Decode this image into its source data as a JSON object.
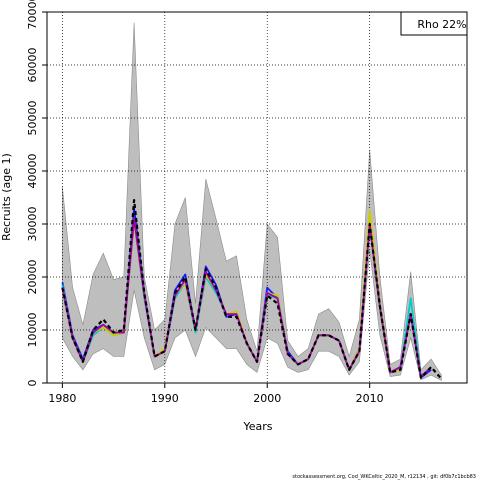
{
  "chart_data": {
    "type": "line",
    "title": "",
    "xlabel": "Years",
    "ylabel": "Recruits (age 1)",
    "xlim": [
      1978.5,
      2019.5
    ],
    "ylim": [
      0,
      70000
    ],
    "xticks": [
      1980,
      1990,
      2000,
      2010
    ],
    "yticks": [
      0,
      10000,
      20000,
      30000,
      40000,
      50000,
      60000,
      70000
    ],
    "grid": true,
    "legend": {
      "placement": "top-right",
      "label": "Rho 22%"
    },
    "footer": "stockassessment.org,  Cod_WKCeltic_2020_M, r12134 ,  git: df0b7c1bcb83",
    "confidence_band": {
      "x": [
        1980,
        1981,
        1982,
        1983,
        1984,
        1985,
        1986,
        1987,
        1988,
        1989,
        1990,
        1991,
        1992,
        1993,
        1994,
        1995,
        1996,
        1997,
        1998,
        1999,
        2000,
        2001,
        2002,
        2003,
        2004,
        2005,
        2006,
        2007,
        2008,
        2009,
        2010,
        2011,
        2012,
        2013,
        2014,
        2015,
        2016,
        2017
      ],
      "upper": [
        37000,
        18000,
        11000,
        20500,
        24500,
        19500,
        20000,
        68000,
        20000,
        10000,
        12000,
        30000,
        35000,
        15000,
        38500,
        31000,
        23000,
        24000,
        12000,
        6000,
        30000,
        27500,
        8000,
        5000,
        6500,
        13000,
        14000,
        11500,
        5000,
        12000,
        44000,
        20000,
        3500,
        4500,
        21000,
        2500,
        4500,
        1500
      ],
      "lower": [
        8500,
        5000,
        2500,
        5500,
        6500,
        5000,
        5000,
        17500,
        8500,
        2500,
        3500,
        8500,
        10000,
        5000,
        10500,
        8500,
        6500,
        6500,
        3500,
        2000,
        8500,
        7500,
        3000,
        2000,
        2500,
        6000,
        6000,
        5000,
        1500,
        4000,
        25000,
        9000,
        1200,
        1500,
        8500,
        600,
        1500,
        500
      ]
    },
    "series": [
      {
        "color": "#1a1aff",
        "values": [
          19000,
          9000,
          4500,
          10000,
          11000,
          9500,
          9500,
          33000,
          17000,
          5000,
          6000,
          17500,
          20500,
          10000,
          22000,
          18500,
          12500,
          13000,
          7500,
          4000,
          18000,
          16000,
          6000,
          3500,
          4500,
          9000,
          9000,
          8000,
          2500,
          6500,
          31000,
          14500,
          2000,
          3000,
          13000,
          1000,
          2500,
          null
        ]
      },
      {
        "color": "#00aa00",
        "values": [
          18000,
          8500,
          4000,
          9500,
          10500,
          9000,
          9500,
          31000,
          16500,
          5000,
          6000,
          16500,
          19000,
          10000,
          20500,
          17500,
          13000,
          13000,
          7500,
          4000,
          17000,
          16500,
          5500,
          3500,
          4500,
          9000,
          9000,
          8000,
          2500,
          6000,
          30000,
          14000,
          2000,
          2500,
          null,
          null,
          null,
          null
        ]
      },
      {
        "color": "#00cccc",
        "values": [
          18500,
          8500,
          4000,
          9000,
          10500,
          9000,
          9500,
          30500,
          16000,
          5000,
          6000,
          16000,
          19000,
          9500,
          20000,
          17000,
          13000,
          13000,
          7500,
          4000,
          16500,
          16000,
          5500,
          3500,
          4500,
          9000,
          9000,
          8000,
          2500,
          6000,
          30500,
          14500,
          2000,
          2500,
          16000,
          1200,
          null,
          null
        ]
      },
      {
        "color": "#cccc00",
        "values": [
          18000,
          8500,
          4000,
          9500,
          10500,
          9000,
          9500,
          30500,
          16500,
          5000,
          6500,
          16500,
          19000,
          10000,
          20500,
          17500,
          13000,
          13500,
          7500,
          4000,
          17000,
          16500,
          5500,
          3500,
          4500,
          9000,
          9000,
          8000,
          2500,
          6500,
          32500,
          15000,
          2000,
          2500,
          null,
          null,
          null,
          null
        ]
      },
      {
        "color": "#aa00aa",
        "values": [
          18000,
          8500,
          4000,
          9500,
          11000,
          9500,
          9500,
          31000,
          16500,
          5000,
          6000,
          16500,
          19500,
          10000,
          21000,
          17500,
          13000,
          13000,
          7500,
          4000,
          17000,
          16000,
          5500,
          3500,
          4500,
          9000,
          9000,
          8000,
          2500,
          6000,
          30000,
          14500,
          2000,
          3000,
          13000,
          1200,
          3000,
          null
        ]
      },
      {
        "color": "#000000",
        "dashed": true,
        "values": [
          18000,
          8500,
          4000,
          10000,
          12000,
          9500,
          10000,
          34500,
          17000,
          5000,
          6000,
          17000,
          20000,
          10000,
          21500,
          18000,
          12500,
          12500,
          7500,
          4000,
          16500,
          15000,
          5500,
          3500,
          4500,
          9000,
          9000,
          8000,
          2500,
          6000,
          30000,
          14500,
          2000,
          2500,
          13000,
          1000,
          3000,
          800
        ]
      }
    ]
  }
}
